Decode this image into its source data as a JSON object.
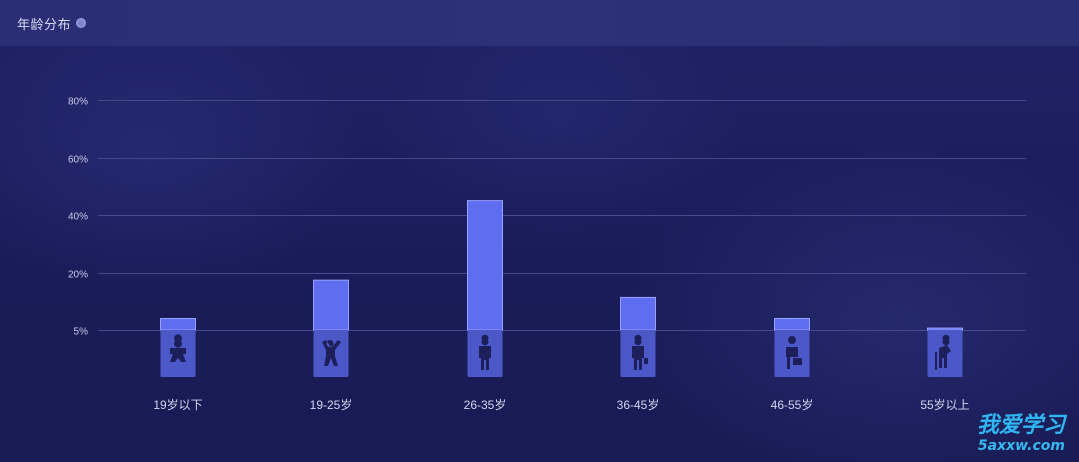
{
  "header": {
    "title": "年龄分布",
    "info_icon": "info-icon"
  },
  "chart_data": {
    "type": "bar",
    "title": "年龄分布",
    "categories": [
      "19岁以下",
      "19-25岁",
      "26-35岁",
      "36-45岁",
      "46-55岁",
      "55岁以上"
    ],
    "values": [
      8,
      18,
      45,
      13.5,
      8,
      5.5
    ],
    "yticks": [
      "5%",
      "20%",
      "40%",
      "60%",
      "80%"
    ],
    "ytick_values": [
      5,
      20,
      40,
      60,
      80
    ],
    "ylim": [
      5,
      80
    ],
    "grid": true,
    "bar_color": "#5f6df0",
    "base_color": "#4d58c8",
    "icons": [
      "baby-icon",
      "child-icon",
      "man-icon",
      "businessman-icon",
      "worker-icon",
      "elder-icon"
    ]
  },
  "watermark": {
    "line1": "我爱学习",
    "line2": "5axxw.com"
  }
}
